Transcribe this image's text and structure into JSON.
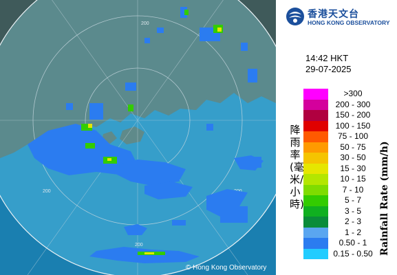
{
  "agency": {
    "name_cn": "香港天文台",
    "name_en": "HONG KONG OBSERVATORY",
    "copyright": "© Hong Kong Observatory"
  },
  "timestamp": {
    "time": "14:42 HKT",
    "date": "29-07-2025"
  },
  "legend": {
    "title_en": "Rainfall Rate (mm/h)",
    "title_cn": "降雨率(毫米/小時)",
    "classes": [
      {
        "label": ">300",
        "color": "#ff00ff"
      },
      {
        "label": "200 - 300",
        "color": "#d4009c"
      },
      {
        "label": "150 - 200",
        "color": "#b00040"
      },
      {
        "label": "100 - 150",
        "color": "#e00000"
      },
      {
        "label": "75 - 100",
        "color": "#ff5a00"
      },
      {
        "label": "50 - 75",
        "color": "#ff9a00"
      },
      {
        "label": "30 - 50",
        "color": "#f5c400"
      },
      {
        "label": "15 - 30",
        "color": "#e6e600"
      },
      {
        "label": "10 - 15",
        "color": "#b4e600"
      },
      {
        "label": "7 - 10",
        "color": "#7fdc00"
      },
      {
        "label": "5 - 7",
        "color": "#33cc00"
      },
      {
        "label": "3 - 5",
        "color": "#10b020"
      },
      {
        "label": "2 - 3",
        "color": "#0a8c3a"
      },
      {
        "label": "1 - 2",
        "color": "#5aa6f0"
      },
      {
        "label": "0.50 - 1",
        "color": "#2b7cf0"
      },
      {
        "label": "0.15 - 0.50",
        "color": "#22ccff"
      }
    ]
  },
  "map": {
    "range_labels": [
      "200",
      "200",
      "200",
      "200"
    ],
    "colors": {
      "land": "#3f5a5a",
      "sea": "#1a7fb0",
      "radar_disc": "#4fb8e0",
      "ring": "#c8d8e0",
      "light_echo": "#2b7cf0",
      "moderate_echo": "#33cc00",
      "heavy_echo": "#e6e600"
    }
  }
}
